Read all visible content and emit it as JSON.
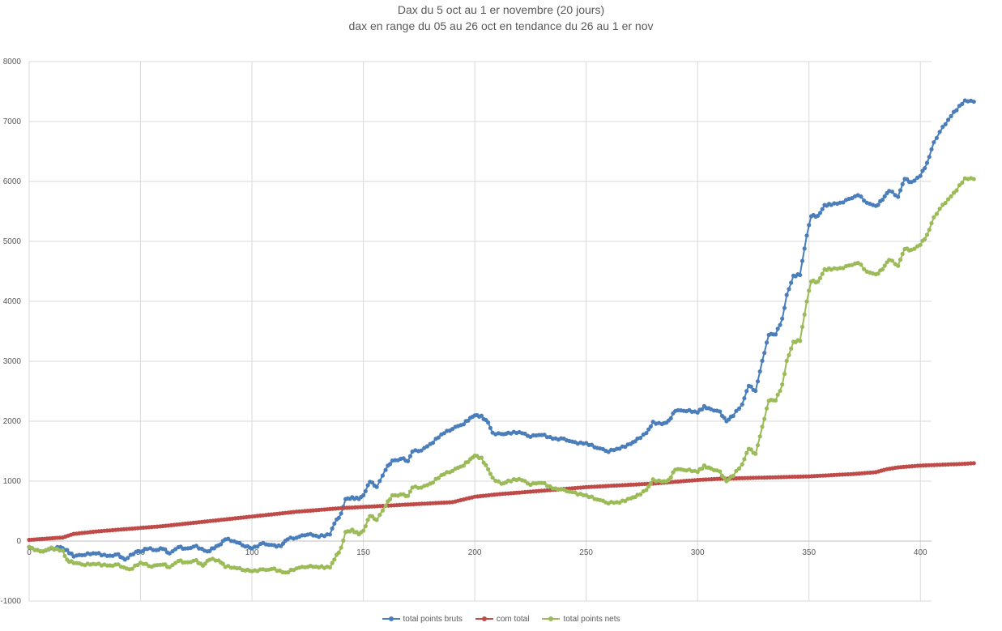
{
  "chart_data": {
    "type": "line",
    "title": "Dax du 5 oct au 1 er novembre (20 jours)",
    "subtitle": "dax en range du 05 au 26 oct en tendance du 26 au 1 er nov",
    "xlim": [
      0,
      405
    ],
    "ylim": [
      -1000,
      8000
    ],
    "x_ticks": [
      0,
      50,
      100,
      150,
      200,
      250,
      300,
      350,
      400
    ],
    "y_ticks": [
      -1000,
      0,
      1000,
      2000,
      3000,
      4000,
      5000,
      6000,
      7000,
      8000
    ],
    "grid": true,
    "legend_position": "bottom",
    "series": [
      {
        "name": "total points bruts",
        "color": "#4a7ebb",
        "points": [
          [
            0,
            -100
          ],
          [
            5,
            -180
          ],
          [
            10,
            -130
          ],
          [
            14,
            -100
          ],
          [
            17,
            -160
          ],
          [
            20,
            -250
          ],
          [
            25,
            -220
          ],
          [
            30,
            -200
          ],
          [
            35,
            -250
          ],
          [
            40,
            -230
          ],
          [
            43,
            -310
          ],
          [
            48,
            -170
          ],
          [
            50,
            -180
          ],
          [
            53,
            -120
          ],
          [
            57,
            -150
          ],
          [
            60,
            -120
          ],
          [
            63,
            -210
          ],
          [
            67,
            -90
          ],
          [
            70,
            -130
          ],
          [
            75,
            -90
          ],
          [
            80,
            -180
          ],
          [
            83,
            -110
          ],
          [
            86,
            -50
          ],
          [
            88,
            40
          ],
          [
            92,
            0
          ],
          [
            97,
            -80
          ],
          [
            100,
            -120
          ],
          [
            105,
            -40
          ],
          [
            110,
            -80
          ],
          [
            113,
            -80
          ],
          [
            116,
            40
          ],
          [
            120,
            60
          ],
          [
            125,
            120
          ],
          [
            130,
            80
          ],
          [
            135,
            110
          ],
          [
            137,
            300
          ],
          [
            140,
            450
          ],
          [
            142,
            700
          ],
          [
            145,
            720
          ],
          [
            148,
            710
          ],
          [
            150,
            760
          ],
          [
            153,
            1000
          ],
          [
            156,
            900
          ],
          [
            160,
            1200
          ],
          [
            163,
            1340
          ],
          [
            168,
            1370
          ],
          [
            170,
            1330
          ],
          [
            172,
            1500
          ],
          [
            176,
            1520
          ],
          [
            180,
            1610
          ],
          [
            185,
            1780
          ],
          [
            190,
            1880
          ],
          [
            195,
            1960
          ],
          [
            198,
            2050
          ],
          [
            200,
            2100
          ],
          [
            203,
            2080
          ],
          [
            206,
            1980
          ],
          [
            208,
            1800
          ],
          [
            212,
            1780
          ],
          [
            215,
            1800
          ],
          [
            220,
            1820
          ],
          [
            225,
            1750
          ],
          [
            230,
            1780
          ],
          [
            235,
            1710
          ],
          [
            240,
            1700
          ],
          [
            245,
            1640
          ],
          [
            250,
            1630
          ],
          [
            255,
            1560
          ],
          [
            260,
            1500
          ],
          [
            265,
            1550
          ],
          [
            270,
            1620
          ],
          [
            273,
            1700
          ],
          [
            277,
            1800
          ],
          [
            280,
            1980
          ],
          [
            284,
            1950
          ],
          [
            287,
            2000
          ],
          [
            290,
            2180
          ],
          [
            295,
            2180
          ],
          [
            300,
            2150
          ],
          [
            303,
            2240
          ],
          [
            306,
            2200
          ],
          [
            310,
            2150
          ],
          [
            313,
            2000
          ],
          [
            316,
            2100
          ],
          [
            320,
            2280
          ],
          [
            323,
            2600
          ],
          [
            326,
            2500
          ],
          [
            329,
            3000
          ],
          [
            332,
            3450
          ],
          [
            335,
            3450
          ],
          [
            338,
            3700
          ],
          [
            340,
            4100
          ],
          [
            343,
            4420
          ],
          [
            346,
            4450
          ],
          [
            349,
            5100
          ],
          [
            351,
            5430
          ],
          [
            354,
            5420
          ],
          [
            357,
            5600
          ],
          [
            360,
            5620
          ],
          [
            364,
            5640
          ],
          [
            368,
            5700
          ],
          [
            372,
            5780
          ],
          [
            376,
            5650
          ],
          [
            380,
            5580
          ],
          [
            383,
            5700
          ],
          [
            386,
            5850
          ],
          [
            390,
            5750
          ],
          [
            393,
            6050
          ],
          [
            396,
            5980
          ],
          [
            400,
            6100
          ],
          [
            403,
            6300
          ],
          [
            406,
            6650
          ],
          [
            410,
            6900
          ],
          [
            415,
            7150
          ],
          [
            420,
            7350
          ],
          [
            424,
            7330
          ]
        ]
      },
      {
        "name": "com total",
        "color": "#be4b48",
        "points": [
          [
            0,
            20
          ],
          [
            15,
            60
          ],
          [
            20,
            120
          ],
          [
            30,
            160
          ],
          [
            40,
            190
          ],
          [
            50,
            220
          ],
          [
            60,
            250
          ],
          [
            70,
            290
          ],
          [
            80,
            330
          ],
          [
            90,
            370
          ],
          [
            100,
            410
          ],
          [
            110,
            450
          ],
          [
            120,
            490
          ],
          [
            130,
            520
          ],
          [
            140,
            550
          ],
          [
            150,
            570
          ],
          [
            160,
            590
          ],
          [
            170,
            610
          ],
          [
            180,
            630
          ],
          [
            190,
            650
          ],
          [
            200,
            740
          ],
          [
            210,
            780
          ],
          [
            220,
            810
          ],
          [
            230,
            840
          ],
          [
            240,
            870
          ],
          [
            250,
            900
          ],
          [
            260,
            920
          ],
          [
            270,
            940
          ],
          [
            280,
            960
          ],
          [
            290,
            990
          ],
          [
            300,
            1020
          ],
          [
            310,
            1040
          ],
          [
            320,
            1050
          ],
          [
            330,
            1060
          ],
          [
            340,
            1070
          ],
          [
            350,
            1080
          ],
          [
            360,
            1100
          ],
          [
            370,
            1120
          ],
          [
            380,
            1150
          ],
          [
            385,
            1200
          ],
          [
            390,
            1230
          ],
          [
            400,
            1260
          ],
          [
            410,
            1275
          ],
          [
            420,
            1290
          ],
          [
            424,
            1300
          ]
        ]
      },
      {
        "name": "total points nets",
        "color": "#9bbb59",
        "points": [
          [
            0,
            -100
          ],
          [
            5,
            -180
          ],
          [
            10,
            -120
          ],
          [
            15,
            -160
          ],
          [
            17,
            -320
          ],
          [
            20,
            -360
          ],
          [
            25,
            -390
          ],
          [
            30,
            -380
          ],
          [
            35,
            -410
          ],
          [
            40,
            -400
          ],
          [
            45,
            -480
          ],
          [
            50,
            -360
          ],
          [
            55,
            -420
          ],
          [
            60,
            -380
          ],
          [
            63,
            -440
          ],
          [
            67,
            -320
          ],
          [
            70,
            -360
          ],
          [
            75,
            -330
          ],
          [
            78,
            -410
          ],
          [
            81,
            -300
          ],
          [
            85,
            -320
          ],
          [
            88,
            -420
          ],
          [
            92,
            -440
          ],
          [
            97,
            -480
          ],
          [
            100,
            -500
          ],
          [
            105,
            -480
          ],
          [
            110,
            -470
          ],
          [
            115,
            -530
          ],
          [
            120,
            -450
          ],
          [
            125,
            -420
          ],
          [
            130,
            -430
          ],
          [
            135,
            -440
          ],
          [
            137,
            -300
          ],
          [
            140,
            -120
          ],
          [
            142,
            150
          ],
          [
            145,
            180
          ],
          [
            148,
            120
          ],
          [
            150,
            170
          ],
          [
            153,
            430
          ],
          [
            156,
            350
          ],
          [
            160,
            600
          ],
          [
            163,
            760
          ],
          [
            168,
            770
          ],
          [
            170,
            750
          ],
          [
            172,
            900
          ],
          [
            176,
            900
          ],
          [
            180,
            950
          ],
          [
            185,
            1100
          ],
          [
            190,
            1180
          ],
          [
            195,
            1270
          ],
          [
            198,
            1360
          ],
          [
            200,
            1430
          ],
          [
            203,
            1380
          ],
          [
            206,
            1200
          ],
          [
            208,
            1050
          ],
          [
            212,
            950
          ],
          [
            215,
            1000
          ],
          [
            220,
            1040
          ],
          [
            225,
            950
          ],
          [
            230,
            980
          ],
          [
            235,
            880
          ],
          [
            240,
            850
          ],
          [
            245,
            800
          ],
          [
            250,
            760
          ],
          [
            255,
            700
          ],
          [
            260,
            640
          ],
          [
            265,
            650
          ],
          [
            270,
            710
          ],
          [
            273,
            760
          ],
          [
            277,
            850
          ],
          [
            280,
            1020
          ],
          [
            284,
            990
          ],
          [
            287,
            1010
          ],
          [
            290,
            1200
          ],
          [
            295,
            1190
          ],
          [
            300,
            1160
          ],
          [
            303,
            1250
          ],
          [
            306,
            1210
          ],
          [
            310,
            1150
          ],
          [
            313,
            1000
          ],
          [
            316,
            1100
          ],
          [
            320,
            1280
          ],
          [
            323,
            1550
          ],
          [
            326,
            1450
          ],
          [
            329,
            1900
          ],
          [
            332,
            2350
          ],
          [
            335,
            2350
          ],
          [
            338,
            2600
          ],
          [
            340,
            3000
          ],
          [
            343,
            3320
          ],
          [
            346,
            3350
          ],
          [
            349,
            4000
          ],
          [
            351,
            4340
          ],
          [
            354,
            4320
          ],
          [
            357,
            4530
          ],
          [
            360,
            4540
          ],
          [
            364,
            4550
          ],
          [
            368,
            4590
          ],
          [
            372,
            4650
          ],
          [
            376,
            4500
          ],
          [
            380,
            4440
          ],
          [
            383,
            4540
          ],
          [
            386,
            4700
          ],
          [
            390,
            4600
          ],
          [
            393,
            4880
          ],
          [
            396,
            4850
          ],
          [
            400,
            4950
          ],
          [
            403,
            5100
          ],
          [
            406,
            5400
          ],
          [
            410,
            5600
          ],
          [
            415,
            5800
          ],
          [
            420,
            6050
          ],
          [
            424,
            6040
          ]
        ]
      }
    ]
  }
}
